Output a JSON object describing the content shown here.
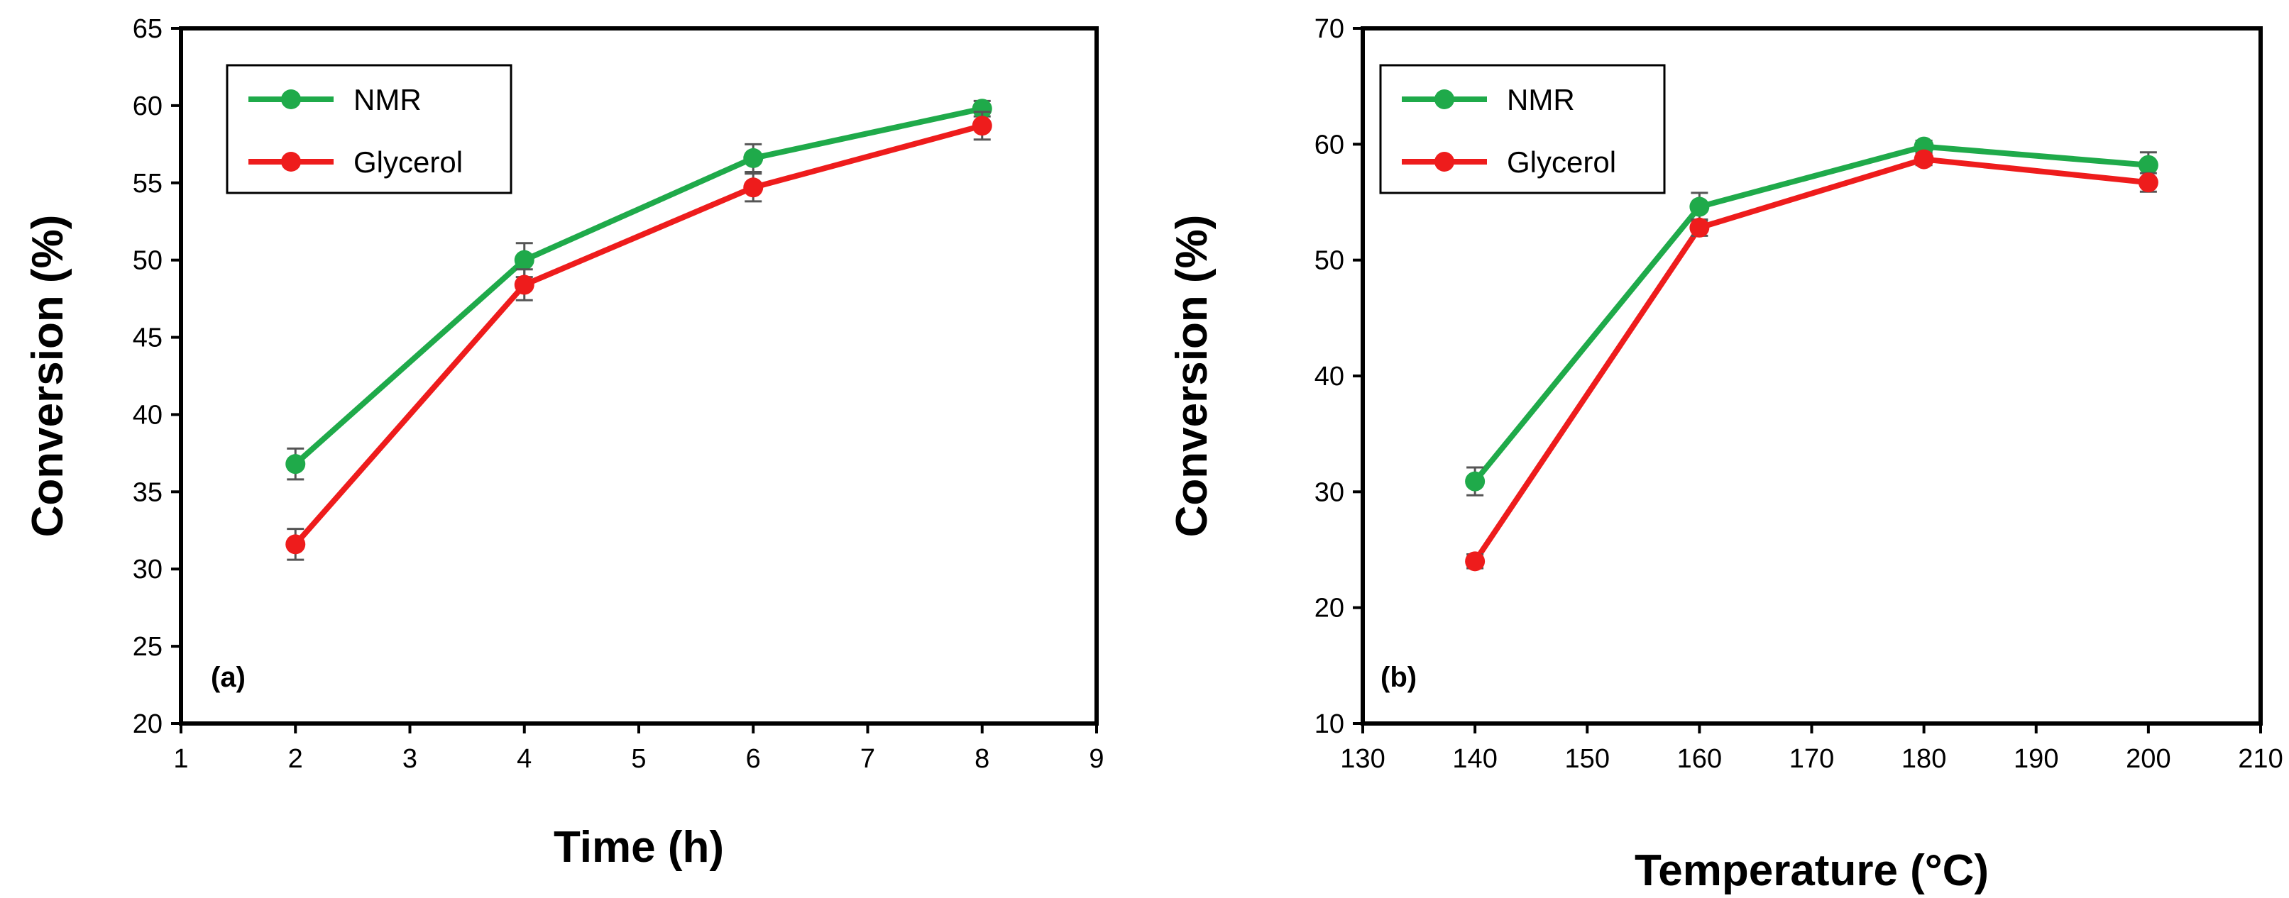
{
  "chart_data": [
    {
      "type": "line",
      "panel_label": "(a)",
      "xlabel": "Time (h)",
      "ylabel": "Conversion (%)",
      "xlim": [
        1,
        9
      ],
      "ylim": [
        20,
        65
      ],
      "xticks": [
        1,
        2,
        3,
        4,
        5,
        6,
        7,
        8,
        9
      ],
      "yticks": [
        20,
        25,
        30,
        35,
        40,
        45,
        50,
        55,
        60,
        65
      ],
      "grid": false,
      "legend_position": "top-left",
      "series": [
        {
          "name": "NMR",
          "color": "#1faa4a",
          "x": [
            2,
            4,
            6,
            8
          ],
          "y": [
            36.8,
            50.0,
            56.6,
            59.8
          ],
          "err": [
            1.0,
            1.1,
            0.9,
            0.5
          ]
        },
        {
          "name": "Glycerol",
          "color": "#ee1c1c",
          "x": [
            2,
            4,
            6,
            8
          ],
          "y": [
            31.6,
            48.4,
            54.7,
            58.7
          ],
          "err": [
            1.0,
            1.0,
            0.9,
            0.9
          ]
        }
      ]
    },
    {
      "type": "line",
      "panel_label": "(b)",
      "xlabel": "Temperature (°C)",
      "ylabel": "Conversion (%)",
      "xlim": [
        130,
        210
      ],
      "ylim": [
        10,
        70
      ],
      "xticks": [
        130,
        140,
        150,
        160,
        170,
        180,
        190,
        200,
        210
      ],
      "yticks": [
        10,
        20,
        30,
        40,
        50,
        60,
        70
      ],
      "grid": false,
      "legend_position": "top-left",
      "series": [
        {
          "name": "NMR",
          "color": "#1faa4a",
          "x": [
            140,
            160,
            180,
            200
          ],
          "y": [
            30.9,
            54.6,
            59.8,
            58.2
          ],
          "err": [
            1.2,
            1.2,
            0.5,
            1.1
          ]
        },
        {
          "name": "Glycerol",
          "color": "#ee1c1c",
          "x": [
            140,
            160,
            180,
            200
          ],
          "y": [
            24.0,
            52.8,
            58.7,
            56.7
          ],
          "err": [
            0.6,
            0.7,
            0.5,
            0.8
          ]
        }
      ]
    }
  ]
}
